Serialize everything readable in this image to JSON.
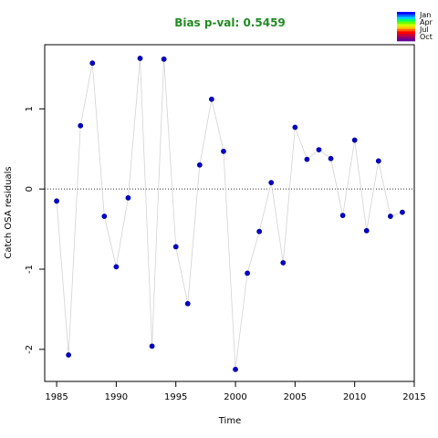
{
  "chart_data": {
    "type": "scatter",
    "title": "Bias p-val: 0.5459",
    "title_color": "#228b22",
    "xlabel": "Time",
    "ylabel": "Catch OSA residuals",
    "xlim": [
      1984,
      2015
    ],
    "ylim": [
      -2.4,
      1.8
    ],
    "xticks": [
      1985,
      1990,
      1995,
      2000,
      2005,
      2010,
      2015
    ],
    "yticks": [
      -2,
      -1,
      0,
      1
    ],
    "reference_line": 0,
    "grid": false,
    "point_color": "#0000cd",
    "line_color": "#d3d3d3",
    "series": [
      {
        "x": [
          1985,
          1986,
          1987,
          1988,
          1989,
          1990,
          1991,
          1992,
          1993,
          1994,
          1995,
          1996,
          1997,
          1998,
          1999,
          2000,
          2001,
          2002,
          2003,
          2004,
          2005,
          2006,
          2007,
          2008,
          2009,
          2010,
          2011,
          2012,
          2013,
          2014
        ],
        "y": [
          -0.15,
          -2.07,
          0.79,
          1.57,
          -0.34,
          -0.97,
          -0.11,
          1.63,
          -1.96,
          1.62,
          -0.72,
          -1.43,
          0.3,
          1.12,
          0.47,
          -2.25,
          -1.05,
          -0.53,
          0.08,
          -0.92,
          0.77,
          0.37,
          0.49,
          0.38,
          -0.33,
          0.61,
          -0.52,
          0.35,
          -0.34,
          -0.29
        ]
      }
    ],
    "legend": {
      "position": "top-right",
      "labels": [
        "Jan",
        "Apr",
        "Jul",
        "Oct"
      ],
      "colors": [
        "#0000ff",
        "#0066ff",
        "#00ccff",
        "#00ff66",
        "#66ff00",
        "#ccff00",
        "#ffcc00",
        "#ff6600",
        "#ff0000",
        "#cc0033",
        "#990066",
        "#660099"
      ]
    }
  }
}
